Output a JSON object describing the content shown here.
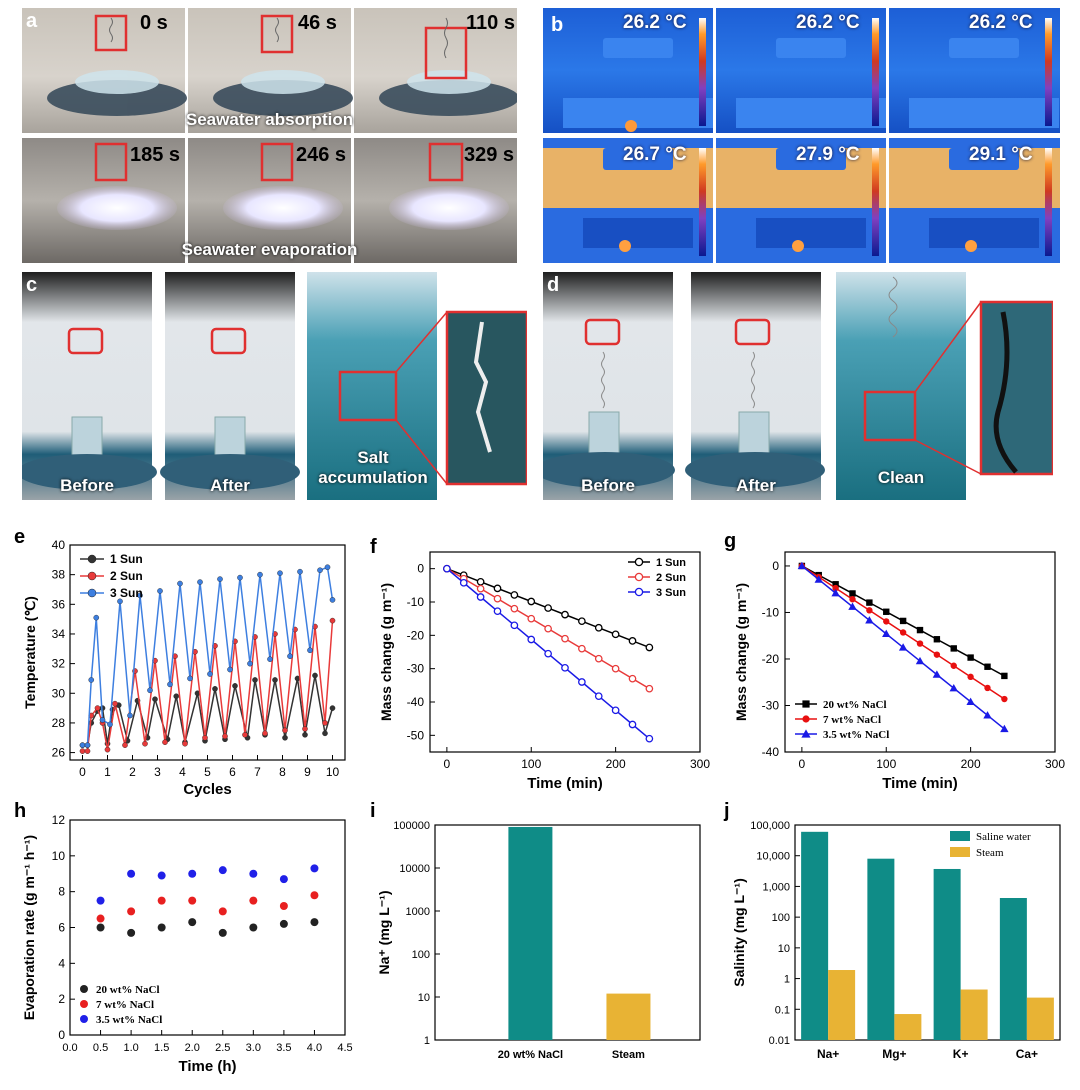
{
  "panels": {
    "a": {
      "label": "a",
      "times_row1": [
        "0 s",
        "46 s",
        "110 s"
      ],
      "times_row2": [
        "185 s",
        "246 s",
        "329 s"
      ],
      "caption_row1": "Seawater absorption",
      "caption_row2": "Seawater evaporation"
    },
    "b": {
      "label": "b",
      "temps_row1": [
        "26.2 °C",
        "26.2 °C",
        "26.2 °C"
      ],
      "temps_row2": [
        "26.7 °C",
        "27.9 °C",
        "29.1 °C"
      ]
    },
    "c": {
      "label": "c",
      "captions": [
        "Before",
        "After",
        "Salt accumulation"
      ]
    },
    "d": {
      "label": "d",
      "captions": [
        "Before",
        "After",
        "Clean"
      ]
    },
    "e": {
      "label": "e"
    },
    "f": {
      "label": "f"
    },
    "g": {
      "label": "g"
    },
    "h": {
      "label": "h"
    },
    "i": {
      "label": "i"
    },
    "j": {
      "label": "j"
    }
  },
  "colors": {
    "black": "#333333",
    "red": "#e83a3a",
    "blue": "#3d7fe0",
    "navy": "#1a1ae6",
    "teal": "#0f8c87",
    "gold": "#e8b334"
  },
  "chart_data": [
    {
      "id": "e",
      "type": "line",
      "xlabel": "Cycles",
      "ylabel": "Temperature (℃)",
      "xlim": [
        -0.5,
        10.5
      ],
      "ylim": [
        25.5,
        40
      ],
      "xticks": [
        0,
        1,
        2,
        3,
        4,
        5,
        6,
        7,
        8,
        9,
        10
      ],
      "yticks": [
        26,
        28,
        30,
        32,
        34,
        36,
        38,
        40
      ],
      "series": [
        {
          "name": "1 Sun",
          "color": "#333333",
          "x": [
            0,
            0.2,
            0.35,
            0.6,
            0.8,
            1.0,
            1.2,
            1.45,
            1.8,
            2.2,
            2.6,
            2.9,
            3.4,
            3.75,
            4.1,
            4.6,
            4.9,
            5.3,
            5.7,
            6.1,
            6.6,
            6.9,
            7.3,
            7.7,
            8.1,
            8.6,
            8.9,
            9.3,
            9.7,
            10.0
          ],
          "y": [
            26.5,
            26.5,
            28.0,
            28.8,
            29.0,
            26.6,
            28.9,
            29.2,
            26.8,
            29.5,
            27.0,
            29.6,
            26.9,
            29.8,
            26.7,
            30.0,
            26.8,
            30.3,
            26.9,
            30.5,
            27.0,
            30.9,
            27.2,
            30.9,
            27.0,
            31.0,
            27.2,
            31.2,
            27.3,
            29.0
          ]
        },
        {
          "name": "2 Sun",
          "color": "#e83a3a",
          "x": [
            0,
            0.2,
            0.35,
            0.6,
            0.8,
            1.0,
            1.3,
            1.7,
            2.1,
            2.5,
            2.9,
            3.3,
            3.7,
            4.1,
            4.5,
            4.9,
            5.3,
            5.7,
            6.1,
            6.5,
            6.9,
            7.3,
            7.7,
            8.1,
            8.5,
            8.9,
            9.3,
            9.7,
            10.0
          ],
          "y": [
            26.1,
            26.1,
            28.5,
            29.0,
            28.0,
            26.2,
            29.3,
            26.5,
            31.5,
            26.6,
            32.2,
            26.7,
            32.5,
            26.6,
            32.8,
            27.0,
            33.2,
            27.1,
            33.5,
            27.2,
            33.8,
            27.3,
            34.0,
            27.5,
            34.3,
            27.6,
            34.5,
            28.0,
            34.9
          ]
        },
        {
          "name": "3 Sun",
          "color": "#3d7fe0",
          "x": [
            0,
            0.2,
            0.35,
            0.55,
            0.8,
            1.1,
            1.5,
            1.9,
            2.3,
            2.7,
            3.1,
            3.5,
            3.9,
            4.3,
            4.7,
            5.1,
            5.5,
            5.9,
            6.3,
            6.7,
            7.1,
            7.5,
            7.9,
            8.3,
            8.7,
            9.1,
            9.5,
            9.8,
            10.0
          ],
          "y": [
            26.5,
            26.5,
            30.9,
            35.1,
            28.2,
            27.9,
            36.2,
            28.5,
            36.6,
            30.2,
            36.9,
            30.6,
            37.4,
            31.0,
            37.5,
            31.3,
            37.7,
            31.6,
            37.8,
            32.0,
            38.0,
            32.3,
            38.1,
            32.5,
            38.2,
            32.9,
            38.3,
            38.5,
            36.3
          ]
        }
      ],
      "legend": "top-left"
    },
    {
      "id": "f",
      "type": "line",
      "xlabel": "Time (min)",
      "ylabel": "Mass change (g m⁻¹)",
      "xlim": [
        -20,
        300
      ],
      "ylim": [
        -55,
        5
      ],
      "xticks": [
        0,
        100,
        200,
        300
      ],
      "yticks": [
        0,
        -10,
        -20,
        -30,
        -40,
        -50
      ],
      "series": [
        {
          "name": "1 Sun",
          "color": "#000000",
          "slope": -0.0985
        },
        {
          "name": "2 Sun",
          "color": "#e83a3a",
          "slope": -0.15
        },
        {
          "name": "3 Sun",
          "color": "#1a1ae6",
          "slope": -0.2125
        }
      ],
      "x": [
        0,
        20,
        40,
        60,
        80,
        100,
        120,
        140,
        160,
        180,
        200,
        220,
        240
      ],
      "legend": "top-right"
    },
    {
      "id": "g",
      "type": "line",
      "xlabel": "Time (min)",
      "ylabel": "Mass change (g m⁻¹)",
      "xlim": [
        -20,
        300
      ],
      "ylim": [
        -40,
        3
      ],
      "xticks": [
        0,
        100,
        200,
        300
      ],
      "yticks": [
        0,
        -10,
        -20,
        -30,
        -40
      ],
      "series": [
        {
          "name": "20 wt% NaCl",
          "color": "#000000",
          "marker": "square",
          "slope": -0.0985
        },
        {
          "name": "7 wt% NaCl",
          "color": "#e81010",
          "marker": "circle",
          "slope": -0.1192
        },
        {
          "name": "3.5 wt% NaCl",
          "color": "#1a1ae6",
          "marker": "triangle",
          "slope": -0.146
        }
      ],
      "x": [
        0,
        20,
        40,
        60,
        80,
        100,
        120,
        140,
        160,
        180,
        200,
        220,
        240
      ],
      "legend": "bottom-left"
    },
    {
      "id": "h",
      "type": "scatter",
      "xlabel": "Time (h)",
      "ylabel": "Evaporation rate (g m⁻¹ h⁻¹)",
      "xlim": [
        0,
        4.5
      ],
      "ylim": [
        0,
        12
      ],
      "xticks": [
        0.0,
        0.5,
        1.0,
        1.5,
        2.0,
        2.5,
        3.0,
        3.5,
        4.0,
        4.5
      ],
      "yticks": [
        0,
        2,
        4,
        6,
        8,
        10,
        12
      ],
      "x": [
        0.5,
        1.0,
        1.5,
        2.0,
        2.5,
        3.0,
        3.5,
        4.0
      ],
      "series": [
        {
          "name": "20 wt% NaCl",
          "color": "#222222",
          "y": [
            6.0,
            5.7,
            6.0,
            6.3,
            5.7,
            6.0,
            6.2,
            6.3
          ]
        },
        {
          "name": "7 wt% NaCl",
          "color": "#e82020",
          "y": [
            6.5,
            6.9,
            7.5,
            7.5,
            6.9,
            7.5,
            7.2,
            7.8
          ]
        },
        {
          "name": "3.5 wt% NaCl",
          "color": "#2020e8",
          "y": [
            7.5,
            9.0,
            8.9,
            9.0,
            9.2,
            9.0,
            8.7,
            9.3
          ]
        }
      ],
      "legend": "bottom-left"
    },
    {
      "id": "i",
      "type": "bar",
      "ylabel": "Na⁺ (mg L⁻¹)",
      "yscale": "log",
      "categories": [
        "20 wt% NaCl",
        "Steam"
      ],
      "values": [
        90000,
        12
      ],
      "colors": [
        "#0f8c87",
        "#e8b334"
      ],
      "yticks": [
        "1",
        "10",
        "100",
        "1000",
        "10000",
        "100000"
      ]
    },
    {
      "id": "j",
      "type": "bar",
      "ylabel": "Salinity (mg L⁻¹)",
      "yscale": "log",
      "categories": [
        "Na+",
        "Mg+",
        "K+",
        "Ca+"
      ],
      "series": [
        {
          "name": "Saline water",
          "color": "#0f8c87",
          "values": [
            60000,
            8000,
            3700,
            420
          ]
        },
        {
          "name": "Steam",
          "color": "#e8b334",
          "values": [
            1.9,
            0.07,
            0.44,
            0.24
          ]
        }
      ],
      "yticks": [
        "0.01",
        "0.1",
        "1",
        "10",
        "100",
        "1,000",
        "10,000",
        "100,000"
      ],
      "legend": "top-right"
    }
  ]
}
